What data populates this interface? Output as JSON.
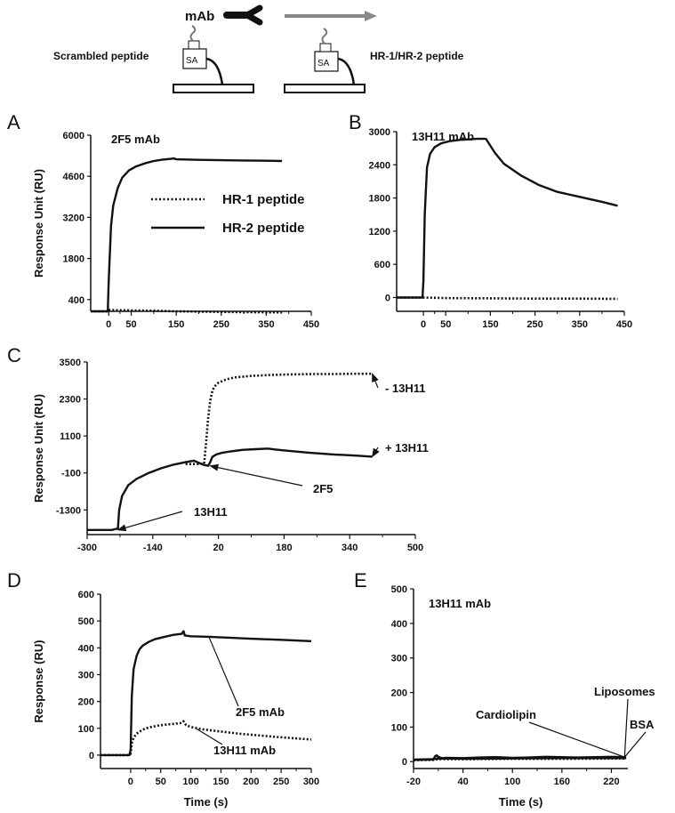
{
  "schematic": {
    "mab_label": "mAb",
    "left_label": "Scrambled peptide",
    "right_label": "HR-1/HR-2 peptide",
    "sa_label": "SA"
  },
  "legend": {
    "hr1": "HR-1 peptide",
    "hr2": "HR-2 peptide"
  },
  "chart_data": [
    {
      "id": "A",
      "type": "line",
      "panel_label": "A",
      "title": "2F5 mAb",
      "ylabel": "Response Unit (RU)",
      "xlabel": "",
      "xlim": [
        -40,
        450
      ],
      "ylim": [
        0,
        6000
      ],
      "xticks": [
        0,
        50,
        150,
        250,
        350,
        450
      ],
      "yticks": [
        400,
        1800,
        3200,
        4600,
        6000
      ],
      "series": [
        {
          "name": "HR-2 peptide",
          "style": "solid",
          "x": [
            -40,
            -2,
            0,
            5,
            10,
            20,
            30,
            45,
            60,
            80,
            100,
            120,
            140,
            145,
            150,
            200,
            250,
            300,
            350,
            385
          ],
          "y": [
            0,
            0,
            1000,
            2900,
            3600,
            4200,
            4550,
            4800,
            4930,
            5040,
            5120,
            5170,
            5200,
            5210,
            5180,
            5160,
            5150,
            5140,
            5130,
            5120
          ]
        },
        {
          "name": "HR-1 peptide",
          "style": "dotted",
          "x": [
            -40,
            -2,
            0,
            20,
            100,
            150,
            250,
            385
          ],
          "y": [
            0,
            0,
            50,
            40,
            20,
            0,
            -20,
            -40
          ]
        }
      ]
    },
    {
      "id": "B",
      "type": "line",
      "panel_label": "B",
      "title": "13H11 mAb",
      "ylabel": "",
      "xlabel": "",
      "xlim": [
        -60,
        450
      ],
      "ylim": [
        -250,
        3000
      ],
      "xticks": [
        0,
        50,
        150,
        250,
        350,
        450
      ],
      "yticks": [
        0,
        600,
        1200,
        1800,
        2400,
        3000
      ],
      "series": [
        {
          "name": "",
          "style": "solid",
          "x": [
            -60,
            -2,
            0,
            3,
            8,
            15,
            25,
            40,
            60,
            80,
            100,
            120,
            140,
            160,
            180,
            220,
            260,
            300,
            350,
            400,
            435
          ],
          "y": [
            0,
            0,
            300,
            1500,
            2350,
            2600,
            2720,
            2790,
            2830,
            2850,
            2860,
            2870,
            2870,
            2620,
            2420,
            2200,
            2030,
            1910,
            1820,
            1730,
            1660
          ]
        },
        {
          "name": "",
          "style": "dotted",
          "x": [
            -60,
            -2,
            0,
            50,
            150,
            250,
            350,
            435
          ],
          "y": [
            0,
            0,
            0,
            -10,
            -15,
            -20,
            -20,
            -25
          ]
        }
      ]
    },
    {
      "id": "C",
      "type": "line",
      "panel_label": "C",
      "title": "",
      "ylabel": "Response Unit (RU)",
      "xlabel": "",
      "xlim": [
        -300,
        500
      ],
      "ylim": [
        -2100,
        3500
      ],
      "xticks": [
        -300,
        -140,
        20,
        180,
        340,
        500
      ],
      "yticks": [
        -1300,
        -100,
        1100,
        2300,
        3500
      ],
      "series": [
        {
          "name": "+ 13H11",
          "style": "solid",
          "x": [
            -300,
            -240,
            -225,
            -222,
            -215,
            -200,
            -180,
            -150,
            -120,
            -90,
            -60,
            -40,
            -30,
            -15,
            -5,
            0,
            5,
            15,
            30,
            50,
            80,
            110,
            140,
            160,
            190,
            240,
            300,
            360,
            395
          ],
          "y": [
            -1950,
            -1950,
            -1900,
            -1300,
            -850,
            -500,
            -300,
            -100,
            50,
            170,
            250,
            300,
            240,
            160,
            130,
            250,
            420,
            500,
            560,
            600,
            650,
            670,
            690,
            660,
            620,
            560,
            500,
            460,
            430
          ]
        },
        {
          "name": "- 13H11",
          "style": "dotted",
          "x": [
            -60,
            -30,
            -15,
            -10,
            -5,
            0,
            5,
            10,
            20,
            40,
            60,
            100,
            150,
            200,
            250,
            300,
            350,
            395
          ],
          "y": [
            190,
            190,
            200,
            900,
            1700,
            2250,
            2550,
            2700,
            2830,
            2940,
            3000,
            3050,
            3080,
            3100,
            3110,
            3110,
            3120,
            3120
          ]
        }
      ],
      "annotations": [
        {
          "text": "- 13H11",
          "x": 395,
          "y": 3120
        },
        {
          "text": "+ 13H11",
          "x": 395,
          "y": 430
        },
        {
          "text": "2F5",
          "x": 0,
          "y": 130
        },
        {
          "text": "13H11",
          "x": -225,
          "y": -1950
        }
      ]
    },
    {
      "id": "D",
      "type": "line",
      "panel_label": "D",
      "title": "",
      "ylabel": "Response (RU)",
      "xlabel": "Time (s)",
      "xlim": [
        -50,
        300
      ],
      "ylim": [
        -50,
        600
      ],
      "xticks": [
        0,
        50,
        100,
        150,
        200,
        250,
        300
      ],
      "yticks": [
        0,
        100,
        200,
        300,
        400,
        500,
        600
      ],
      "series": [
        {
          "name": "2F5 mAb",
          "style": "solid",
          "x": [
            -50,
            -2,
            0,
            2,
            5,
            10,
            15,
            20,
            30,
            40,
            55,
            70,
            85,
            88,
            90,
            100,
            130,
            160,
            200,
            250,
            300
          ],
          "y": [
            0,
            0,
            20,
            220,
            320,
            370,
            395,
            408,
            422,
            432,
            440,
            448,
            452,
            462,
            446,
            443,
            441,
            438,
            434,
            430,
            425
          ]
        },
        {
          "name": "13H11 mAb",
          "style": "dotted",
          "x": [
            -50,
            -2,
            0,
            2,
            5,
            10,
            20,
            30,
            45,
            60,
            75,
            85,
            88,
            92,
            100,
            120,
            150,
            180,
            210,
            240,
            270,
            300
          ],
          "y": [
            0,
            0,
            5,
            45,
            65,
            80,
            95,
            103,
            110,
            114,
            117,
            120,
            126,
            112,
            105,
            96,
            88,
            80,
            74,
            68,
            63,
            58
          ]
        }
      ],
      "annotations": [
        {
          "text": "2F5 mAb",
          "x": 130,
          "y": 441
        },
        {
          "text": "13H11 mAb",
          "x": 108,
          "y": 100
        }
      ]
    },
    {
      "id": "E",
      "type": "line",
      "panel_label": "E",
      "title": "13H11 mAb",
      "ylabel": "",
      "xlabel": "Time (s)",
      "xlim": [
        -20,
        240
      ],
      "ylim": [
        -20,
        500
      ],
      "xticks": [
        -20,
        40,
        100,
        160,
        220
      ],
      "yticks": [
        0,
        100,
        200,
        300,
        400,
        500
      ],
      "series": [
        {
          "name": "Cardiolipin",
          "style": "solid",
          "x": [
            -20,
            4,
            6,
            8,
            10,
            12,
            15,
            20,
            40,
            60,
            80,
            100,
            120,
            140,
            160,
            180,
            200,
            220,
            238
          ],
          "y": [
            5,
            6,
            15,
            18,
            14,
            12,
            10,
            11,
            10,
            12,
            13,
            11,
            12,
            14,
            13,
            12,
            13,
            14,
            13
          ]
        },
        {
          "name": "Liposomes",
          "style": "solid",
          "x": [
            -20,
            4,
            10,
            40,
            100,
            160,
            238
          ],
          "y": [
            6,
            7,
            9,
            8,
            9,
            10,
            10
          ]
        },
        {
          "name": "BSA",
          "style": "dotted",
          "x": [
            -20,
            4,
            10,
            40,
            100,
            160,
            238
          ],
          "y": [
            4,
            5,
            7,
            7,
            8,
            8,
            9
          ]
        }
      ],
      "annotations": [
        {
          "text": "Cardiolipin",
          "x": 236,
          "y": 13
        },
        {
          "text": "Liposomes",
          "x": 236,
          "y": 13
        },
        {
          "text": "BSA",
          "x": 236,
          "y": 13
        }
      ]
    }
  ]
}
